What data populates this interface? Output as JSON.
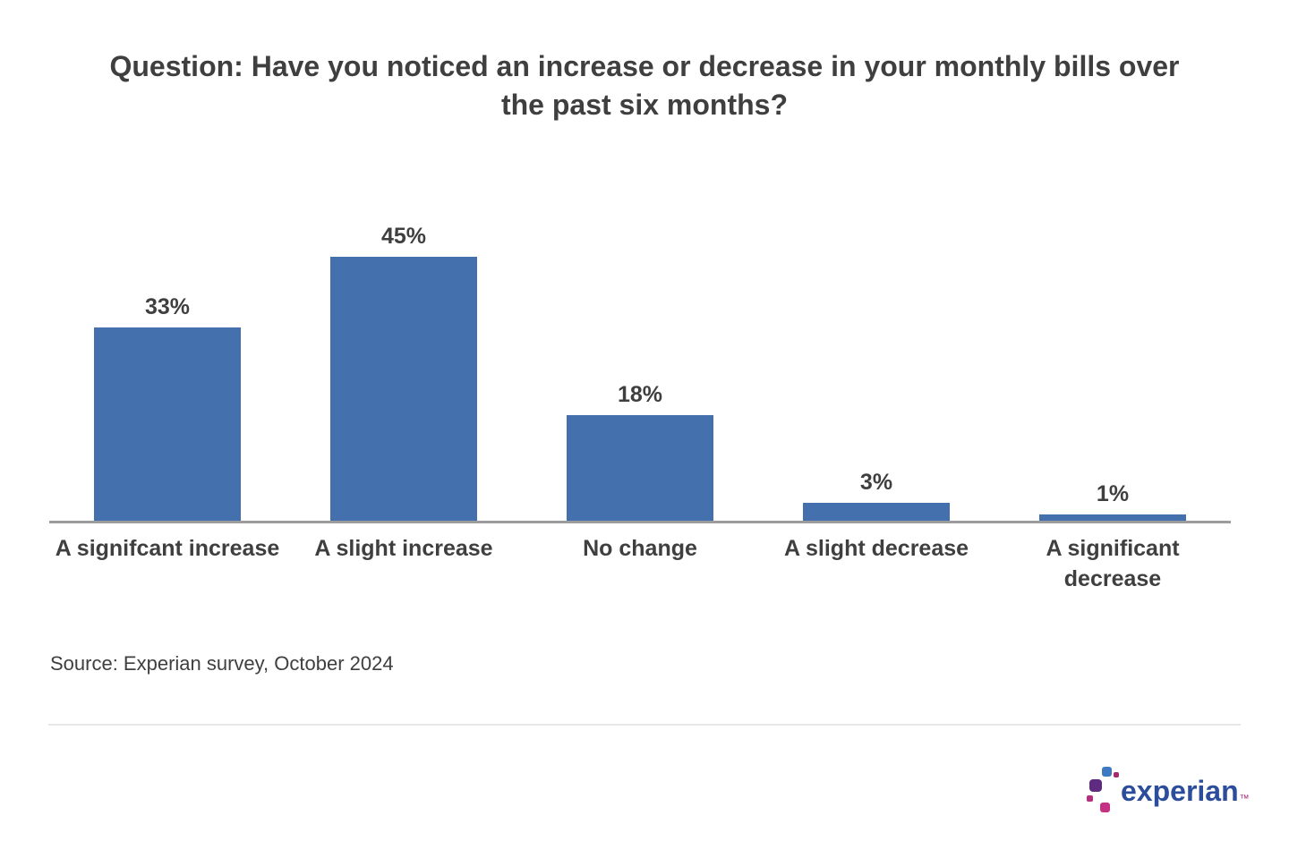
{
  "header": {
    "title_lines": [
      "Question: Have you noticed an increase or decrease in your monthly bills over",
      "the past six months?"
    ]
  },
  "chart_data": {
    "type": "bar",
    "title": "Question: Have you noticed an increase or decrease in your monthly bills over the past six months?",
    "categories": [
      "A signifcant increase",
      "A slight increase",
      "No change",
      "A slight decrease",
      "A significant decrease"
    ],
    "category_lines": [
      [
        "A signifcant increase"
      ],
      [
        "A slight increase"
      ],
      [
        "No change"
      ],
      [
        "A slight decrease"
      ],
      [
        "A significant",
        "decrease"
      ]
    ],
    "values": [
      33,
      45,
      18,
      3,
      1
    ],
    "value_labels": [
      "33%",
      "45%",
      "18%",
      "3%",
      "1%"
    ],
    "xlabel": "",
    "ylabel": "",
    "ylim": [
      0,
      52
    ],
    "grid": false,
    "legend": false,
    "bar_color": "#4471ad",
    "axis_color": "#9c9c9c",
    "label_color": "#3f3f3f"
  },
  "source": {
    "text": "Source: Experian survey, October 2024"
  },
  "logo": {
    "wordmark": "experian",
    "trademark_symbol": "™",
    "wordmark_color": "#2c4d9c",
    "trademark_color": "#a3246d",
    "squares": [
      {
        "name": "blue-square",
        "color": "#3d7ac1"
      },
      {
        "name": "dark-pink-dot",
        "color": "#a72a6e"
      },
      {
        "name": "purple-square",
        "color": "#5e2b80"
      },
      {
        "name": "small-magenta-square",
        "color": "#b52f80"
      },
      {
        "name": "magenta-square",
        "color": "#c43184"
      }
    ]
  }
}
